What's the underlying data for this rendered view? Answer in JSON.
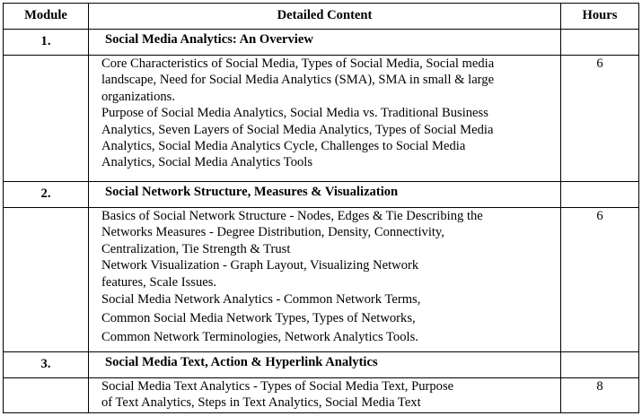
{
  "header": {
    "module": "Module",
    "content": "Detailed Content",
    "hours": "Hours"
  },
  "modules": [
    {
      "number": "1.",
      "title": "Social Media Analytics: An Overview",
      "hours": "6",
      "paragraphs": [
        "Core Characteristics of Social Media, Types of Social Media, Social media\nlandscape, Need for Social Media Analytics (SMA), SMA in small & large\norganizations.",
        " Purpose of Social Media Analytics, Social Media vs. Traditional Business\nAnalytics, Seven Layers of Social Media Analytics, Types of Social Media\nAnalytics, Social Media Analytics Cycle, Challenges to Social Media\nAnalytics, Social Media Analytics Tools"
      ]
    },
    {
      "number": "2.",
      "title": "Social Network Structure, Measures & Visualization",
      "hours": "6",
      "paragraphs": [
        " Basics of Social Network Structure - Nodes, Edges & Tie Describing the\nNetworks Measures - Degree Distribution, Density, Connectivity,\nCentralization, Tie Strength & Trust",
        " Network Visualization - Graph Layout, Visualizing Network\nfeatures, Scale Issues.",
        " Social Media Network Analytics - Common Network Terms,\nCommon Social Media Network Types, Types of Networks,\nCommon Network Terminologies, Network Analytics Tools."
      ]
    },
    {
      "number": "3.",
      "title": "Social Media Text, Action & Hyperlink Analytics",
      "hours": "8",
      "paragraphs": [
        " Social Media Text Analytics - Types of Social Media Text, Purpose\nof Text Analytics, Steps in Text Analytics, Social Media Text"
      ]
    }
  ]
}
